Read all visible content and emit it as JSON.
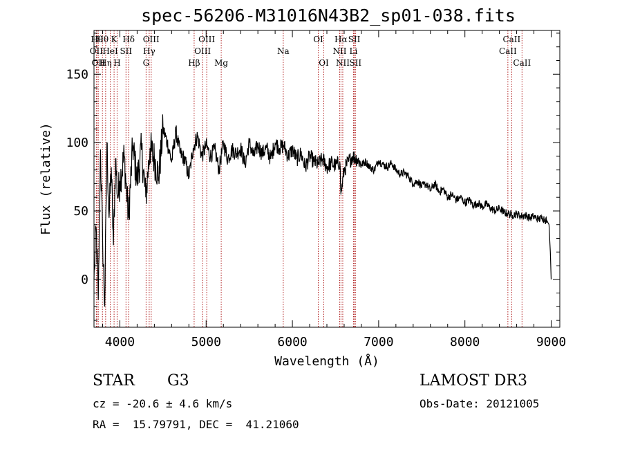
{
  "chart_data": {
    "type": "line",
    "title": "spec-56206-M31016N43B2_sp01-038.fits",
    "xlabel": "Wavelength (Å)",
    "ylabel": "Flux (relative)",
    "xlim": [
      3700,
      9100
    ],
    "ylim": [
      -35,
      182
    ],
    "xticks": [
      4000,
      5000,
      6000,
      7000,
      8000,
      9000
    ],
    "xtick_labels": [
      "4000",
      "5000",
      "6000",
      "7000",
      "8000",
      "9000"
    ],
    "yticks": [
      0,
      50,
      100,
      150
    ],
    "ytick_labels": [
      "0",
      "50",
      "100",
      "150"
    ],
    "series": [
      {
        "name": "flux",
        "x": [
          3700,
          3725,
          3750,
          3775,
          3800,
          3825,
          3850,
          3875,
          3900,
          3925,
          3950,
          3975,
          4000,
          4050,
          4100,
          4150,
          4200,
          4250,
          4300,
          4350,
          4400,
          4450,
          4500,
          4550,
          4600,
          4650,
          4700,
          4750,
          4800,
          4850,
          4900,
          4950,
          5000,
          5050,
          5100,
          5150,
          5200,
          5250,
          5300,
          5350,
          5400,
          5450,
          5500,
          5550,
          5600,
          5650,
          5700,
          5750,
          5800,
          5850,
          5900,
          5950,
          6000,
          6050,
          6100,
          6150,
          6200,
          6250,
          6300,
          6350,
          6400,
          6450,
          6500,
          6550,
          6563,
          6600,
          6650,
          6700,
          6750,
          6800,
          6850,
          6900,
          6950,
          7000,
          7050,
          7100,
          7150,
          7200,
          7250,
          7300,
          7350,
          7400,
          7450,
          7500,
          7550,
          7600,
          7650,
          7700,
          7750,
          7800,
          7850,
          7900,
          7950,
          8000,
          8050,
          8100,
          8150,
          8200,
          8250,
          8300,
          8350,
          8400,
          8450,
          8500,
          8550,
          8600,
          8650,
          8700,
          8750,
          8800,
          8850,
          8900,
          8950,
          8975,
          8990,
          9000
        ],
        "y": [
          0,
          38,
          -15,
          95,
          28,
          -20,
          100,
          45,
          82,
          25,
          88,
          60,
          72,
          90,
          45,
          98,
          72,
          95,
          60,
          96,
          88,
          75,
          110,
          100,
          86,
          108,
          92,
          88,
          75,
          96,
          105,
          90,
          98,
          90,
          95,
          80,
          100,
          88,
          95,
          92,
          96,
          84,
          100,
          90,
          98,
          92,
          96,
          88,
          100,
          96,
          98,
          90,
          95,
          88,
          92,
          82,
          90,
          86,
          84,
          88,
          82,
          85,
          83,
          86,
          62,
          80,
          86,
          90,
          88,
          84,
          86,
          82,
          80,
          87,
          84,
          82,
          85,
          80,
          77,
          78,
          75,
          70,
          72,
          68,
          70,
          65,
          70,
          64,
          66,
          60,
          62,
          58,
          60,
          56,
          58,
          54,
          56,
          53,
          55,
          52,
          50,
          52,
          49,
          48,
          47,
          48,
          46,
          47,
          45,
          46,
          44,
          45,
          43,
          40,
          20,
          0
        ]
      }
    ],
    "lines": [
      {
        "x": 3727,
        "row": 1,
        "label": "OII"
      },
      {
        "x": 3734,
        "row": 0,
        "label": "Hθ"
      },
      {
        "x": 3750,
        "row": 2,
        "label": "OII"
      },
      {
        "x": 3798,
        "row": 0,
        "label": "Hθ"
      },
      {
        "x": 3835,
        "row": 2,
        "label": "Hη"
      },
      {
        "x": 3889,
        "row": 1,
        "label": "HeI"
      },
      {
        "x": 3933,
        "row": 0,
        "label": "K"
      },
      {
        "x": 3968,
        "row": 2,
        "label": "H"
      },
      {
        "x": 4071,
        "row": 1,
        "label": "SII"
      },
      {
        "x": 4102,
        "row": 0,
        "label": "Hδ"
      },
      {
        "x": 4304,
        "row": 2,
        "label": "G"
      },
      {
        "x": 4340,
        "row": 1,
        "label": "Hγ"
      },
      {
        "x": 4363,
        "row": 0,
        "label": "OIII"
      },
      {
        "x": 4861,
        "row": 2,
        "label": "Hβ"
      },
      {
        "x": 4959,
        "row": 1,
        "label": "OIII"
      },
      {
        "x": 5007,
        "row": 0,
        "label": "OIII"
      },
      {
        "x": 5175,
        "row": 2,
        "label": "Mg"
      },
      {
        "x": 5894,
        "row": 1,
        "label": "Na"
      },
      {
        "x": 6300,
        "row": 0,
        "label": "OI"
      },
      {
        "x": 6364,
        "row": 2,
        "label": "OI"
      },
      {
        "x": 6548,
        "row": 1,
        "label": "NII"
      },
      {
        "x": 6563,
        "row": 0,
        "label": "Hα"
      },
      {
        "x": 6584,
        "row": 2,
        "label": "NII"
      },
      {
        "x": 6708,
        "row": 1,
        "label": "Li"
      },
      {
        "x": 6717,
        "row": 0,
        "label": "SII"
      },
      {
        "x": 6731,
        "row": 2,
        "label": "SII"
      },
      {
        "x": 8498,
        "row": 1,
        "label": "CaII"
      },
      {
        "x": 8542,
        "row": 0,
        "label": "CaII"
      },
      {
        "x": 8662,
        "row": 2,
        "label": "CaII"
      }
    ]
  },
  "info": {
    "object_type": "STAR",
    "subclass": "G3",
    "survey": "LAMOST DR3",
    "cz": "cz = -20.6 ± 4.6 km/s",
    "obs_date": "Obs-Date: 20121005",
    "coords": "RA =  15.79791, DEC =  41.21060"
  },
  "colors": {
    "line_marker": "#b22222",
    "spectrum": "#000000"
  }
}
